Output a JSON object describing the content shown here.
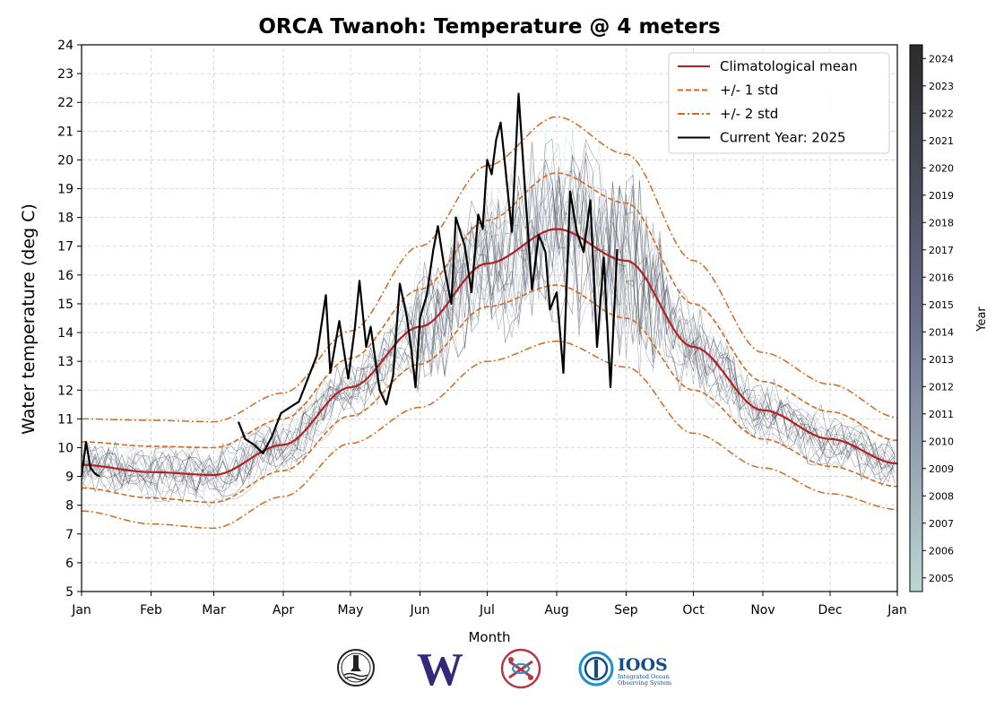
{
  "chart_data": {
    "type": "line",
    "title": "ORCA Twanoh: Temperature @ 4 meters",
    "xlabel": "Month",
    "ylabel": "Water temperature (deg C)",
    "xticks": [
      "Jan",
      "Feb",
      "Mar",
      "Apr",
      "May",
      "Jun",
      "Jul",
      "Aug",
      "Sep",
      "Oct",
      "Nov",
      "Dec",
      "Jan"
    ],
    "ylim": [
      5,
      24
    ],
    "yticks": [
      5,
      6,
      7,
      8,
      9,
      10,
      11,
      12,
      13,
      14,
      15,
      16,
      17,
      18,
      19,
      20,
      21,
      22,
      23,
      24
    ],
    "grid": true,
    "legend_position": "top-right",
    "legend": [
      {
        "label": "Climatological mean",
        "color": "#b22222",
        "style": "solid"
      },
      {
        "label": "+/- 1 std",
        "color": "#d2691e",
        "style": "dashed"
      },
      {
        "label": "+/- 2 std",
        "color": "#d2691e",
        "style": "dashdot"
      },
      {
        "label": "Current Year: 2025",
        "color": "#000000",
        "style": "solid"
      }
    ],
    "day_of_year": [
      1,
      32,
      60,
      91,
      121,
      152,
      182,
      213,
      244,
      274,
      305,
      335,
      365
    ],
    "mean": [
      9.4,
      9.15,
      9.05,
      10.1,
      12.1,
      14.2,
      16.4,
      17.6,
      16.5,
      13.5,
      11.3,
      10.3,
      9.45
    ],
    "std1": [
      0.8,
      0.9,
      0.95,
      0.9,
      1.0,
      1.3,
      1.5,
      1.95,
      2.0,
      1.5,
      1.0,
      0.95,
      0.8
    ],
    "std2": [
      1.6,
      1.8,
      1.85,
      1.8,
      1.95,
      2.8,
      3.4,
      3.9,
      3.7,
      3.0,
      2.0,
      1.9,
      1.6
    ],
    "current_year": {
      "label": "Current Year: 2025",
      "segments": [
        {
          "x": [
            1,
            3,
            5,
            7,
            9
          ],
          "y": [
            9.0,
            10.2,
            9.3,
            9.1,
            9.0
          ]
        },
        {
          "x": [
            71,
            74,
            78,
            82,
            86,
            90,
            94,
            98,
            102,
            106,
            110,
            112,
            116,
            120,
            123,
            125,
            128,
            130,
            134,
            137,
            140,
            143,
            146,
            148,
            150,
            152,
            155,
            158,
            160,
            163,
            166,
            168,
            170,
            172,
            175,
            178,
            180,
            182,
            184,
            186,
            188,
            190,
            193,
            196,
            199,
            202,
            205,
            208,
            210,
            213,
            216,
            219,
            222,
            225,
            228,
            231,
            234,
            237,
            240
          ],
          "y": [
            10.9,
            10.3,
            10.1,
            9.8,
            10.4,
            11.2,
            11.4,
            11.6,
            12.4,
            13.2,
            15.3,
            12.6,
            14.4,
            12.4,
            14.2,
            15.8,
            13.5,
            14.2,
            12.0,
            11.5,
            12.5,
            15.7,
            14.6,
            13.5,
            12.1,
            14.5,
            15.3,
            16.9,
            17.7,
            16.2,
            15.0,
            18.0,
            17.5,
            17.0,
            15.4,
            18.1,
            17.6,
            20.0,
            19.5,
            20.7,
            21.3,
            19.8,
            17.5,
            22.3,
            18.8,
            15.5,
            17.4,
            16.8,
            14.8,
            15.4,
            12.6,
            18.9,
            17.5,
            16.8,
            18.6,
            13.5,
            16.6,
            12.1,
            16.9
          ]
        }
      ]
    }
  },
  "colorbar": {
    "label": "Year",
    "ticks": [
      "2005",
      "2006",
      "2007",
      "2008",
      "2009",
      "2010",
      "2011",
      "2012",
      "2013",
      "2014",
      "2015",
      "2016",
      "2017",
      "2018",
      "2019",
      "2020",
      "2021",
      "2022",
      "2023",
      "2024"
    ],
    "color_low": "#bdd7d4",
    "color_mid": "#6a6e8c",
    "color_high": "#2b2b2b"
  },
  "logos": {
    "ioos_name": "IOOS",
    "ioos_sub1": "Integrated Ocean",
    "ioos_sub2": "Observing System",
    "uw_letter": "W"
  }
}
